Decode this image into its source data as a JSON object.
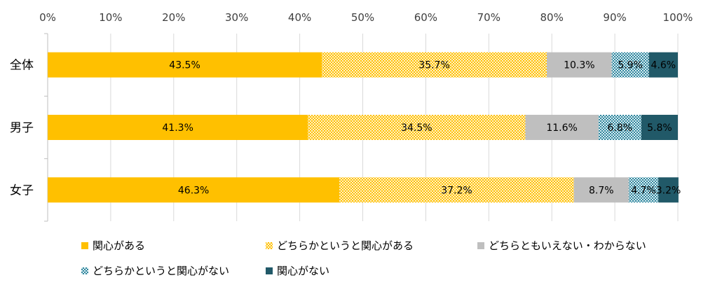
{
  "chart_data": {
    "type": "bar",
    "orientation": "horizontal",
    "stacked": true,
    "title": "",
    "xlabel": "",
    "ylabel": "",
    "xlim": [
      0,
      100
    ],
    "x_ticks": [
      "0%",
      "10%",
      "20%",
      "30%",
      "40%",
      "50%",
      "60%",
      "70%",
      "80%",
      "90%",
      "100%"
    ],
    "categories": [
      "全体",
      "男子",
      "女子"
    ],
    "grid": true,
    "legend_position": "bottom",
    "series": [
      {
        "name": "関心がある",
        "values": [
          43.5,
          41.3,
          46.3
        ],
        "labels": [
          "43.5%",
          "41.3%",
          "46.3%"
        ],
        "color": "#FFC000",
        "pattern": "solid"
      },
      {
        "name": "どちらかというと関心がある",
        "values": [
          35.7,
          34.5,
          37.2
        ],
        "labels": [
          "35.7%",
          "34.5%",
          "37.2%"
        ],
        "color": "#FFD966",
        "pattern": "dotted"
      },
      {
        "name": "どちらともいえない・わからない",
        "values": [
          10.3,
          11.6,
          8.7
        ],
        "labels": [
          "10.3%",
          "11.6%",
          "8.7%"
        ],
        "color": "#BFBFBF",
        "pattern": "solid"
      },
      {
        "name": "どちらかというと関心がない",
        "values": [
          5.9,
          6.8,
          4.7
        ],
        "labels": [
          "5.9%",
          "6.8%",
          "4.7%"
        ],
        "color": "#5B9BA8",
        "pattern": "dotted"
      },
      {
        "name": "関心がない",
        "values": [
          4.6,
          5.8,
          3.2
        ],
        "labels": [
          "4.6%",
          "5.8%",
          "3.2%"
        ],
        "color": "#215968",
        "pattern": "solid"
      }
    ]
  }
}
